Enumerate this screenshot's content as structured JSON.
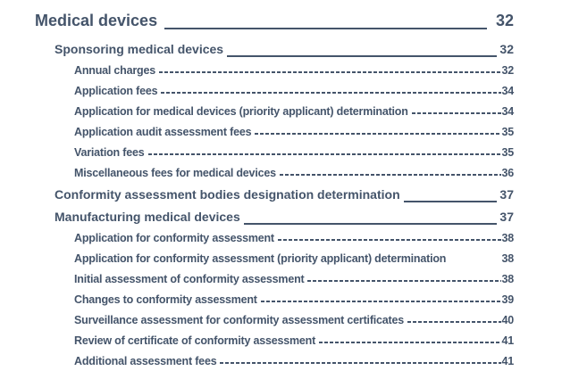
{
  "colors": {
    "ink": "#44546a",
    "background": "#ffffff"
  },
  "toc": {
    "entries": [
      {
        "label": "Medical devices",
        "page": "32",
        "level": 1,
        "leader": "underscore"
      },
      {
        "label": "Sponsoring medical devices",
        "page": "32",
        "level": 2,
        "leader": "underscore"
      },
      {
        "label": "Annual charges",
        "page": "32",
        "level": 3,
        "leader": "dashes"
      },
      {
        "label": "Application fees",
        "page": "34",
        "level": 3,
        "leader": "dashes"
      },
      {
        "label": "Application for medical devices (priority applicant) determination",
        "page": "34",
        "level": 3,
        "leader": "dashes"
      },
      {
        "label": "Application audit assessment fees",
        "page": "35",
        "level": 3,
        "leader": "dashes"
      },
      {
        "label": "Variation fees",
        "page": "35",
        "level": 3,
        "leader": "dashes"
      },
      {
        "label": "Miscellaneous fees for medical devices",
        "page": "36",
        "level": 3,
        "leader": "dashes"
      },
      {
        "label": "Conformity assessment bodies designation determination",
        "page": "37",
        "level": 2,
        "leader": "underscore"
      },
      {
        "label": "Manufacturing medical devices",
        "page": "37",
        "level": 2,
        "leader": "underscore"
      },
      {
        "label": "Application for conformity assessment",
        "page": "38",
        "level": 3,
        "leader": "dashes"
      },
      {
        "label": "Application for conformity assessment (priority applicant) determination",
        "page": "38",
        "level": 3,
        "leader": "none"
      },
      {
        "label": "Initial assessment of conformity assessment",
        "page": "38",
        "level": 3,
        "leader": "dashes"
      },
      {
        "label": "Changes to conformity assessment",
        "page": "39",
        "level": 3,
        "leader": "dashes"
      },
      {
        "label": "Surveillance assessment for conformity assessment certificates",
        "page": "40",
        "level": 3,
        "leader": "dashes"
      },
      {
        "label": "Review of certificate of conformity assessment",
        "page": "41",
        "level": 3,
        "leader": "dashes"
      },
      {
        "label": "Additional assessment fees",
        "page": "41",
        "level": 3,
        "leader": "dashes"
      }
    ]
  }
}
